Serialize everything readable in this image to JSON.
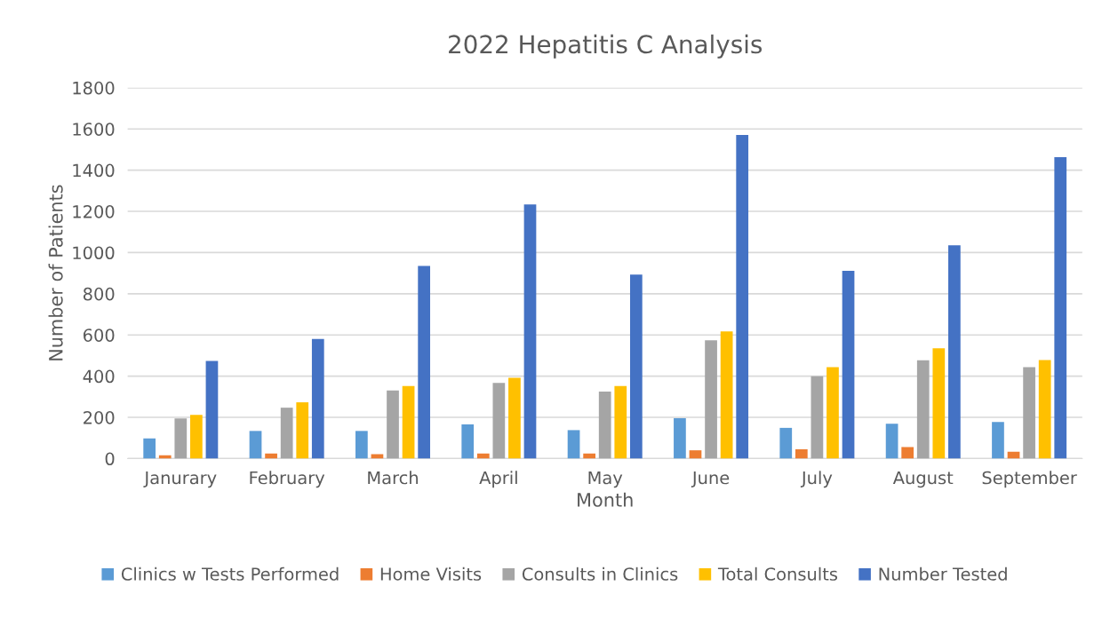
{
  "chart_data": {
    "type": "bar",
    "title": "2022 Hepatitis C Analysis",
    "xlabel": "Month",
    "ylabel": "Number of Patients",
    "categories": [
      "Janurary",
      "February",
      "March",
      "April",
      "May",
      "June",
      "July",
      "August",
      "September"
    ],
    "series": [
      {
        "name": "Clinics w Tests Performed",
        "color": "#5b9bd5",
        "values": [
          98,
          134,
          134,
          166,
          138,
          196,
          149,
          169,
          177
        ]
      },
      {
        "name": "Home Visits",
        "color": "#ed7d31",
        "values": [
          16,
          24,
          21,
          24,
          24,
          40,
          45,
          56,
          33
        ]
      },
      {
        "name": "Consults in Clinics",
        "color": "#a5a5a5",
        "values": [
          195,
          247,
          330,
          367,
          325,
          574,
          400,
          477,
          444
        ]
      },
      {
        "name": "Total Consults",
        "color": "#ffc000",
        "values": [
          212,
          273,
          352,
          392,
          352,
          617,
          444,
          535,
          478
        ]
      },
      {
        "name": "Number Tested",
        "color": "#4472c4",
        "values": [
          474,
          581,
          935,
          1234,
          893,
          1571,
          911,
          1035,
          1463
        ]
      }
    ],
    "ylim": [
      0,
      1800
    ],
    "yticks": [
      0,
      200,
      400,
      600,
      800,
      1000,
      1200,
      1400,
      1600,
      1800
    ],
    "grid": "y",
    "legend": "bottom"
  }
}
